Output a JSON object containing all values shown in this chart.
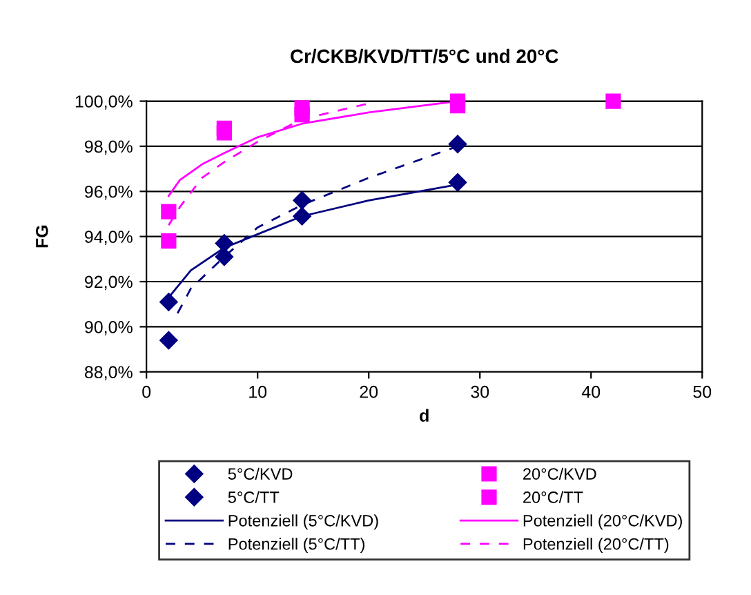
{
  "chart_data": {
    "type": "scatter",
    "title": "Cr/CKB/KVD/TT/5°C und 20°C",
    "xlabel": "d",
    "ylabel": "FG",
    "xlim": [
      0,
      50
    ],
    "xticks": [
      0,
      10,
      20,
      30,
      40,
      50
    ],
    "ylim": [
      88,
      100
    ],
    "yticks": [
      {
        "value": 88,
        "label": "88,0%"
      },
      {
        "value": 90,
        "label": "90,0%"
      },
      {
        "value": 92,
        "label": "92,0%"
      },
      {
        "value": 94,
        "label": "94,0%"
      },
      {
        "value": 96,
        "label": "96,0%"
      },
      {
        "value": 98,
        "label": "98,0%"
      },
      {
        "value": 100,
        "label": "100,0%"
      }
    ],
    "grid": "y",
    "legend": "bottom",
    "series": [
      {
        "name": "5°C/KVD",
        "color": "#000080",
        "marker": "diamond",
        "x": [
          2,
          7,
          14,
          28
        ],
        "values": [
          91.1,
          93.1,
          94.9,
          96.4
        ]
      },
      {
        "name": "5°C/TT",
        "color": "#000080",
        "marker": "diamond",
        "x": [
          2,
          7,
          14,
          28
        ],
        "values": [
          89.4,
          93.7,
          95.6,
          98.1
        ]
      },
      {
        "name": "Potenziell (5°C/KVD)",
        "type": "line",
        "color": "#000080",
        "line_style": "solid",
        "x": [
          2,
          4,
          7,
          10,
          14,
          20,
          28
        ],
        "values": [
          91.3,
          92.5,
          93.5,
          94.1,
          94.9,
          95.6,
          96.3
        ]
      },
      {
        "name": "Potenziell (5°C/TT)",
        "type": "line",
        "color": "#000080",
        "line_style": "dashed",
        "x": [
          2.8,
          4,
          7,
          10,
          14,
          20,
          28
        ],
        "values": [
          90.6,
          91.7,
          93.1,
          94.4,
          95.4,
          96.6,
          98.0
        ]
      },
      {
        "name": "20°C/KVD",
        "color": "#ff00ff",
        "marker": "square",
        "x": [
          2,
          7,
          14,
          28,
          42
        ],
        "values": [
          95.1,
          98.6,
          99.7,
          100.0,
          100.0
        ]
      },
      {
        "name": "20°C/TT",
        "color": "#ff00ff",
        "marker": "square",
        "x": [
          2,
          7,
          14,
          28
        ],
        "values": [
          93.8,
          98.8,
          99.4,
          99.8
        ]
      },
      {
        "name": "Potenziell (20°C/KVD)",
        "type": "line",
        "color": "#ff00ff",
        "line_style": "solid",
        "x": [
          2,
          3,
          5,
          7,
          10,
          14,
          20,
          28
        ],
        "values": [
          95.8,
          96.5,
          97.2,
          97.7,
          98.4,
          99.0,
          99.5,
          100.0
        ]
      },
      {
        "name": "Potenziell (20°C/TT)",
        "type": "line",
        "color": "#ff00ff",
        "line_style": "dashed",
        "x": [
          2,
          3,
          5,
          7,
          10,
          14,
          20
        ],
        "values": [
          94.5,
          95.3,
          96.6,
          97.3,
          98.2,
          99.2,
          99.9
        ]
      }
    ]
  }
}
